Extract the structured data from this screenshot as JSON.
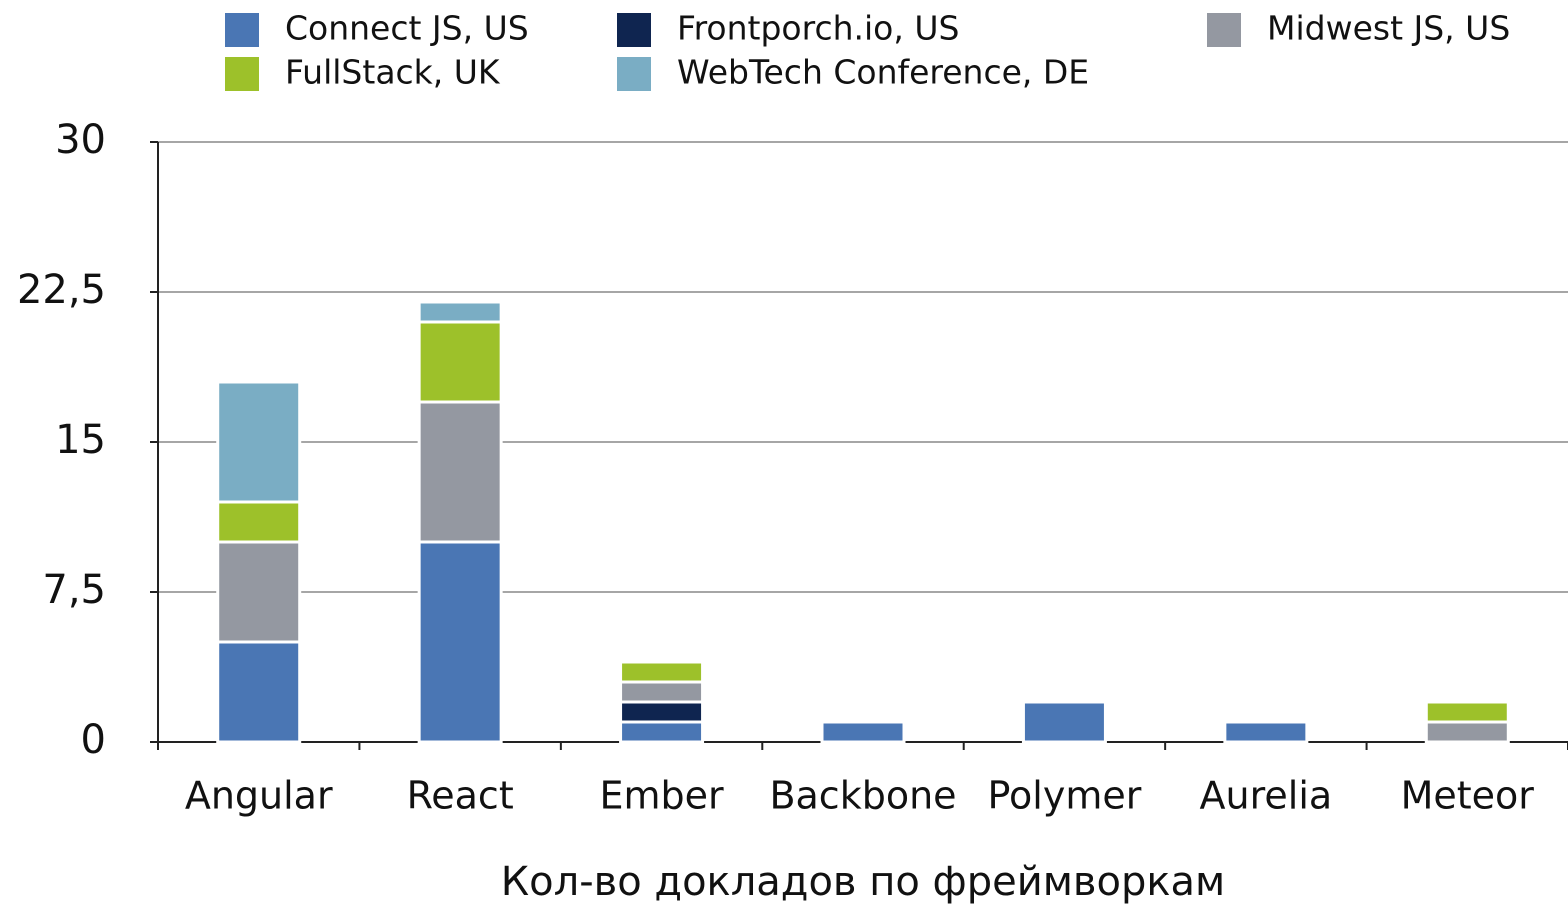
{
  "chart_data": {
    "type": "stacked_bar",
    "xlabel": "Кол-во докладов по фреймворкам",
    "categories": [
      "Angular",
      "React",
      "Ember",
      "Backbone",
      "Polymer",
      "Aurelia",
      "Meteor"
    ],
    "series": [
      {
        "name": "Connect JS, US",
        "color": "#4a76b4",
        "values": [
          5,
          10,
          1,
          1,
          2,
          1,
          0
        ]
      },
      {
        "name": "Frontporch.io, US",
        "color": "#0f2550",
        "values": [
          0,
          0,
          1,
          0,
          0,
          0,
          0
        ]
      },
      {
        "name": "Midwest JS, US",
        "color": "#9498a1",
        "values": [
          5,
          7,
          1,
          0,
          0,
          0,
          1
        ]
      },
      {
        "name": "FullStack, UK",
        "color": "#9dc12a",
        "values": [
          2,
          4,
          1,
          0,
          0,
          0,
          1
        ]
      },
      {
        "name": "WebTech Conference, DE",
        "color": "#7aadc4",
        "values": [
          6,
          1,
          0,
          0,
          0,
          0,
          0
        ]
      }
    ],
    "ylim": [
      0,
      30
    ],
    "yticks": [
      0,
      {
        "value": 7.5,
        "label": "7,5"
      },
      15,
      {
        "value": 22.5,
        "label": "22,5"
      },
      30
    ],
    "grid": true
  }
}
